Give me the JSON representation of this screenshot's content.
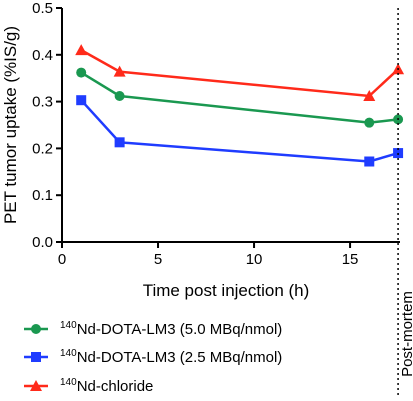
{
  "chart_data": {
    "type": "line",
    "xlabel": "Time post injection (h)",
    "ylabel": "PET tumor uptake (%IS/g)",
    "xlim": [
      0,
      17.6
    ],
    "ylim": [
      0,
      0.5
    ],
    "x_ticks": [
      "0",
      "5",
      "10",
      "15"
    ],
    "y_ticks": [
      "0.0",
      "0.1",
      "0.2",
      "0.3",
      "0.4",
      "0.5"
    ],
    "annotation": "Post-mortem",
    "legend_position": "bottom",
    "series": [
      {
        "name_sup": "140",
        "name": "Nd-DOTA-LM3 (5.0 MBq/nmol)",
        "color": "#1a9850",
        "marker": "circle",
        "x": [
          1,
          3,
          16,
          17.5
        ],
        "y": [
          0.362,
          0.312,
          0.255,
          0.262
        ]
      },
      {
        "name_sup": "140",
        "name": "Nd-DOTA-LM3 (2.5 MBq/nmol)",
        "color": "#1f3cff",
        "marker": "square",
        "x": [
          1,
          3,
          16,
          17.5
        ],
        "y": [
          0.303,
          0.213,
          0.172,
          0.19
        ]
      },
      {
        "name_sup": "140",
        "name": "Nd-chloride",
        "color": "#ff2a1a",
        "marker": "triangle",
        "x": [
          1,
          3,
          16,
          17.5
        ],
        "y": [
          0.41,
          0.364,
          0.312,
          0.369
        ]
      }
    ]
  }
}
